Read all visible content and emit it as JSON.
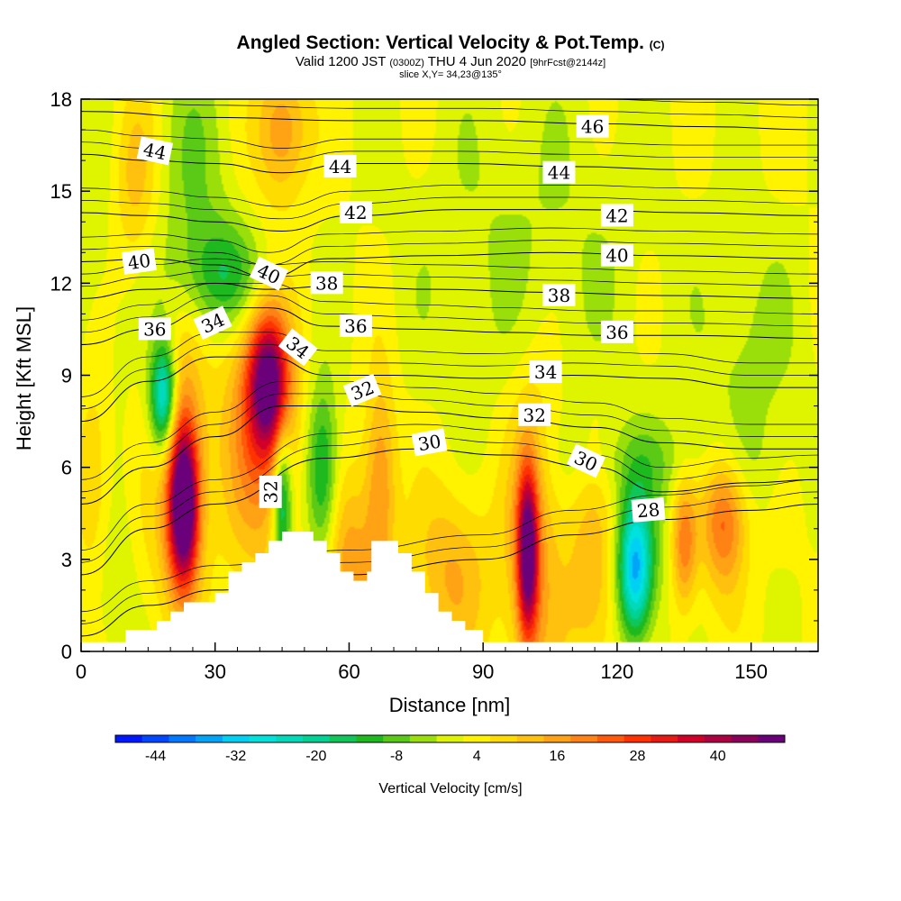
{
  "title": {
    "main": "Angled Section: Vertical Velocity & Pot.Temp.",
    "main_suffix": "(C)",
    "line2_a": "Valid 1200 JST",
    "line2_b": "(0300Z)",
    "line2_c": "THU 4 Jun 2020",
    "line2_d": "[9hrFcst@2144z]",
    "line3": "slice X,Y= 34,23@135°"
  },
  "chart_data": {
    "type": "heatmap",
    "xlabel": "Distance [nm]",
    "ylabel": "Height [Kft MSL]",
    "xlim": [
      0,
      165
    ],
    "ylim": [
      0,
      18
    ],
    "xticks": [
      "0",
      "30",
      "60",
      "90",
      "120",
      "150"
    ],
    "xtick_values": [
      0,
      30,
      60,
      90,
      120,
      150
    ],
    "yticks": [
      "0",
      "3",
      "6",
      "9",
      "12",
      "15",
      "18"
    ],
    "ytick_values": [
      0,
      3,
      6,
      9,
      12,
      15,
      18
    ],
    "colorbar": {
      "label": "Vertical Velocity [cm/s]",
      "range": [
        -50,
        50
      ],
      "step": 4,
      "tick_labels": [
        "-44",
        "-32",
        "-20",
        "-8",
        "4",
        "16",
        "28",
        "40"
      ],
      "tick_values": [
        -44,
        -32,
        -20,
        -8,
        4,
        16,
        28,
        40
      ]
    },
    "velocity_features": [
      {
        "x": 23,
        "y": 4.7,
        "value": 48,
        "sx": 2.2,
        "sy": 1.7
      },
      {
        "x": 21,
        "y": 6.0,
        "value": 24,
        "sx": 4.5,
        "sy": 3.0
      },
      {
        "x": 42,
        "y": 8.7,
        "value": 38,
        "sx": 3.0,
        "sy": 1.5
      },
      {
        "x": 40,
        "y": 7.5,
        "value": 20,
        "sx": 5.5,
        "sy": 3.2
      },
      {
        "x": 100,
        "y": 3.2,
        "value": 42,
        "sx": 1.6,
        "sy": 1.9
      },
      {
        "x": 101,
        "y": 3.5,
        "value": 14,
        "sx": 4.5,
        "sy": 4.0
      },
      {
        "x": 144,
        "y": 4.3,
        "value": 22,
        "sx": 3.5,
        "sy": 1.6
      },
      {
        "x": 135,
        "y": 3.5,
        "value": 18,
        "sx": 2.0,
        "sy": 1.5
      },
      {
        "x": 115,
        "y": 2.5,
        "value": 12,
        "sx": 4.5,
        "sy": 2.5
      },
      {
        "x": 83,
        "y": 2.6,
        "value": 12,
        "sx": 6.0,
        "sy": 2.0
      },
      {
        "x": 67,
        "y": 5.5,
        "value": 16,
        "sx": 2.5,
        "sy": 2.5
      },
      {
        "x": 60,
        "y": 2.8,
        "value": 14,
        "sx": 4.0,
        "sy": 2.0
      },
      {
        "x": 45,
        "y": 17.0,
        "value": 16,
        "sx": 4.0,
        "sy": 1.5
      },
      {
        "x": 12,
        "y": 15.5,
        "value": 10,
        "sx": 3.5,
        "sy": 2.0
      },
      {
        "x": 3,
        "y": 5.5,
        "value": 10,
        "sx": 3.0,
        "sy": 3.0
      },
      {
        "x": 18.5,
        "y": 8.3,
        "value": -30,
        "sx": 2.0,
        "sy": 1.2
      },
      {
        "x": 18,
        "y": 7.0,
        "value": -14,
        "sx": 3.0,
        "sy": 2.5
      },
      {
        "x": 45,
        "y": 4.8,
        "value": -24,
        "sx": 1.5,
        "sy": 1.8
      },
      {
        "x": 54,
        "y": 5.8,
        "value": -20,
        "sx": 2.5,
        "sy": 2.0
      },
      {
        "x": 124,
        "y": 2.6,
        "value": -28,
        "sx": 2.5,
        "sy": 1.5
      },
      {
        "x": 124,
        "y": 3.2,
        "value": -12,
        "sx": 4.5,
        "sy": 2.0
      },
      {
        "x": 33,
        "y": 12.2,
        "value": -16,
        "sx": 7.0,
        "sy": 1.3
      },
      {
        "x": 25,
        "y": 15.5,
        "value": -8,
        "sx": 6.0,
        "sy": 3.0
      },
      {
        "x": 100,
        "y": 13.0,
        "value": -5,
        "sx": 20.0,
        "sy": 4.0
      },
      {
        "x": 150,
        "y": 9.5,
        "value": -6,
        "sx": 8.0,
        "sy": 3.0
      },
      {
        "x": 6,
        "y": 2.0,
        "value": -6,
        "sx": 4.0,
        "sy": 2.0
      },
      {
        "x": 4,
        "y": 11.0,
        "value": -4,
        "sx": 5.0,
        "sy": 4.0
      },
      {
        "x": 128,
        "y": 6.2,
        "value": -6,
        "sx": 15.0,
        "sy": 1.0
      }
    ],
    "terrain_nm_kft": [
      [
        0,
        0.3
      ],
      [
        10,
        0.3
      ],
      [
        10,
        0.7
      ],
      [
        17,
        0.7
      ],
      [
        17,
        1.0
      ],
      [
        20,
        1.0
      ],
      [
        20,
        1.3
      ],
      [
        23,
        1.3
      ],
      [
        23,
        1.6
      ],
      [
        30,
        1.6
      ],
      [
        30,
        1.9
      ],
      [
        33,
        1.9
      ],
      [
        33,
        2.6
      ],
      [
        36,
        2.6
      ],
      [
        36,
        2.9
      ],
      [
        39,
        2.9
      ],
      [
        39,
        3.2
      ],
      [
        42,
        3.2
      ],
      [
        42,
        3.6
      ],
      [
        45,
        3.6
      ],
      [
        45,
        3.9
      ],
      [
        52,
        3.9
      ],
      [
        52,
        3.6
      ],
      [
        55,
        3.6
      ],
      [
        55,
        3.2
      ],
      [
        58,
        3.2
      ],
      [
        58,
        2.6
      ],
      [
        61,
        2.6
      ],
      [
        61,
        2.3
      ],
      [
        64,
        2.3
      ],
      [
        64,
        2.6
      ],
      [
        65,
        2.6
      ],
      [
        65,
        3.6
      ],
      [
        71,
        3.6
      ],
      [
        71,
        3.2
      ],
      [
        74,
        3.2
      ],
      [
        74,
        2.6
      ],
      [
        77,
        2.6
      ],
      [
        77,
        1.9
      ],
      [
        80,
        1.9
      ],
      [
        80,
        1.3
      ],
      [
        83,
        1.3
      ],
      [
        83,
        1.0
      ],
      [
        86,
        1.0
      ],
      [
        86,
        0.7
      ],
      [
        90,
        0.7
      ],
      [
        90,
        0.3
      ],
      [
        165,
        0.3
      ]
    ],
    "theta_contours": [
      {
        "level": 28,
        "points": [
          [
            0,
            0.5
          ],
          [
            15,
            1.5
          ],
          [
            30,
            2.0
          ],
          [
            60,
            2.5
          ],
          [
            90,
            3.0
          ],
          [
            110,
            3.8
          ],
          [
            130,
            4.3
          ],
          [
            150,
            4.6
          ],
          [
            165,
            4.8
          ]
        ]
      },
      {
        "level": 30,
        "points": [
          [
            0,
            2.5
          ],
          [
            15,
            4.0
          ],
          [
            30,
            4.8
          ],
          [
            55,
            6.3
          ],
          [
            75,
            6.6
          ],
          [
            95,
            6.4
          ],
          [
            115,
            6.0
          ],
          [
            130,
            5.2
          ],
          [
            150,
            5.5
          ],
          [
            165,
            5.6
          ]
        ]
      },
      {
        "level": 32,
        "points": [
          [
            0,
            4.8
          ],
          [
            15,
            6.0
          ],
          [
            30,
            7.0
          ],
          [
            45,
            8.0
          ],
          [
            60,
            8.0
          ],
          [
            75,
            7.8
          ],
          [
            95,
            7.6
          ],
          [
            115,
            7.3
          ],
          [
            130,
            6.8
          ],
          [
            150,
            6.6
          ],
          [
            165,
            6.6
          ]
        ]
      },
      {
        "level": 34,
        "points": [
          [
            0,
            7.5
          ],
          [
            15,
            8.8
          ],
          [
            30,
            9.6
          ],
          [
            42,
            9.6
          ],
          [
            55,
            9.0
          ],
          [
            70,
            9.0
          ],
          [
            90,
            8.9
          ],
          [
            110,
            9.0
          ],
          [
            130,
            8.9
          ],
          [
            150,
            8.6
          ],
          [
            165,
            8.6
          ]
        ]
      },
      {
        "level": 36,
        "points": [
          [
            0,
            10.0
          ],
          [
            15,
            10.5
          ],
          [
            30,
            11.2
          ],
          [
            42,
            11.2
          ],
          [
            55,
            10.6
          ],
          [
            75,
            10.5
          ],
          [
            95,
            10.4
          ],
          [
            115,
            10.3
          ],
          [
            135,
            10.3
          ],
          [
            165,
            10.2
          ]
        ]
      },
      {
        "level": 38,
        "points": [
          [
            0,
            11.5
          ],
          [
            15,
            11.8
          ],
          [
            30,
            12.0
          ],
          [
            42,
            11.8
          ],
          [
            55,
            11.9
          ],
          [
            80,
            11.8
          ],
          [
            105,
            11.7
          ],
          [
            130,
            11.6
          ],
          [
            165,
            11.5
          ]
        ]
      },
      {
        "level": 40,
        "points": [
          [
            0,
            12.7
          ],
          [
            15,
            12.8
          ],
          [
            30,
            12.6
          ],
          [
            42,
            12.2
          ],
          [
            55,
            12.8
          ],
          [
            80,
            12.9
          ],
          [
            105,
            13.0
          ],
          [
            130,
            12.9
          ],
          [
            165,
            12.8
          ]
        ]
      },
      {
        "level": 42,
        "points": [
          [
            0,
            14.3
          ],
          [
            15,
            14.2
          ],
          [
            30,
            14.0
          ],
          [
            45,
            13.7
          ],
          [
            60,
            14.2
          ],
          [
            85,
            14.4
          ],
          [
            110,
            14.4
          ],
          [
            135,
            14.3
          ],
          [
            165,
            14.2
          ]
        ]
      },
      {
        "level": 44,
        "points": [
          [
            0,
            16.2
          ],
          [
            15,
            16.0
          ],
          [
            30,
            15.9
          ],
          [
            45,
            15.6
          ],
          [
            60,
            15.9
          ],
          [
            85,
            15.9
          ],
          [
            110,
            15.8
          ],
          [
            135,
            15.7
          ],
          [
            165,
            15.7
          ]
        ]
      },
      {
        "level": 46,
        "points": [
          [
            0,
            17.6
          ],
          [
            30,
            17.4
          ],
          [
            60,
            17.3
          ],
          [
            90,
            17.3
          ],
          [
            115,
            17.2
          ],
          [
            140,
            17.1
          ],
          [
            165,
            17.0
          ]
        ]
      }
    ],
    "contour_labels": [
      {
        "text": "46",
        "x": 114.5,
        "y": 17.1,
        "angle": 0
      },
      {
        "text": "44",
        "x": 16.5,
        "y": 16.3,
        "angle": 12
      },
      {
        "text": "44",
        "x": 58,
        "y": 15.8,
        "angle": 0
      },
      {
        "text": "44",
        "x": 107,
        "y": 15.6,
        "angle": 0
      },
      {
        "text": "42",
        "x": 61.5,
        "y": 14.3,
        "angle": 0
      },
      {
        "text": "42",
        "x": 120,
        "y": 14.2,
        "angle": 0
      },
      {
        "text": "40",
        "x": 13,
        "y": 12.7,
        "angle": -8
      },
      {
        "text": "40",
        "x": 42,
        "y": 12.3,
        "angle": 25
      },
      {
        "text": "40",
        "x": 120,
        "y": 12.9,
        "angle": 0
      },
      {
        "text": "38",
        "x": 55,
        "y": 12.0,
        "angle": 0
      },
      {
        "text": "38",
        "x": 107,
        "y": 11.6,
        "angle": 0
      },
      {
        "text": "36",
        "x": 16.5,
        "y": 10.5,
        "angle": 0
      },
      {
        "text": "36",
        "x": 61.5,
        "y": 10.6,
        "angle": 0
      },
      {
        "text": "36",
        "x": 120,
        "y": 10.4,
        "angle": 0
      },
      {
        "text": "34",
        "x": 29.5,
        "y": 10.7,
        "angle": -25
      },
      {
        "text": "34",
        "x": 48.5,
        "y": 9.9,
        "angle": 38
      },
      {
        "text": "34",
        "x": 104,
        "y": 9.1,
        "angle": 0
      },
      {
        "text": "32",
        "x": 63,
        "y": 8.5,
        "angle": -22
      },
      {
        "text": "32",
        "x": 101.5,
        "y": 7.7,
        "angle": 0
      },
      {
        "text": "32",
        "x": 42.5,
        "y": 5.2,
        "angle": -90
      },
      {
        "text": "30",
        "x": 78,
        "y": 6.8,
        "angle": -10
      },
      {
        "text": "30",
        "x": 113,
        "y": 6.2,
        "angle": 25
      },
      {
        "text": "28",
        "x": 127,
        "y": 4.6,
        "angle": -5
      }
    ]
  }
}
